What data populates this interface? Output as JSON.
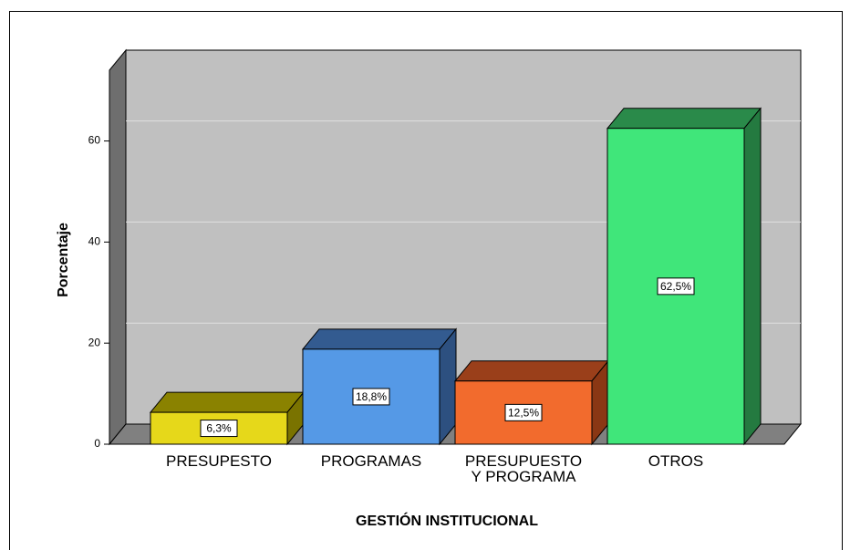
{
  "chart_data": {
    "type": "bar3d",
    "categories": [
      "PRESUPESTO",
      "PROGRAMAS",
      "PRESUPUESTO\nY PROGRAMA",
      "OTROS"
    ],
    "values": [
      6.3,
      18.8,
      12.5,
      62.5
    ],
    "value_labels": [
      "6,3%",
      "18,8%",
      "12,5%",
      "62,5%"
    ],
    "colors": [
      "#e6d81a",
      "#5599e6",
      "#f26b2d",
      "#40e67a"
    ],
    "top_colors": [
      "#8a8200",
      "#335b90",
      "#9a3f1a",
      "#2a8a4a"
    ],
    "side_colors": [
      "#7a7300",
      "#2d5080",
      "#8a3714",
      "#247a40"
    ],
    "y_label": "Porcentaje",
    "x_label": "GESTIÓN INSTITUCIONAL",
    "ylim": [
      0,
      74
    ],
    "yticks": [
      0,
      20,
      40,
      60
    ],
    "grid": true
  }
}
